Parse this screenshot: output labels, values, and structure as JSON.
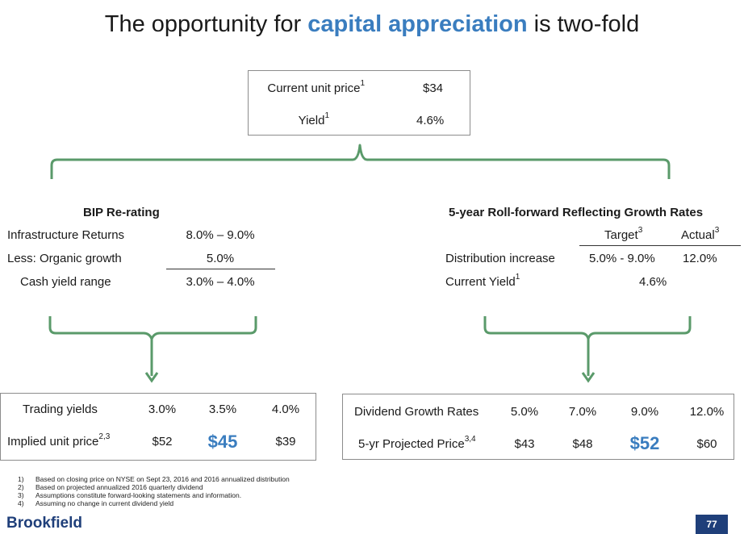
{
  "title": {
    "pre": "The opportunity for ",
    "highlight": "capital appreciation",
    "post": " is two-fold"
  },
  "top_box": {
    "price_label": "Current unit price",
    "price_sup": "1",
    "price_value": "$34",
    "yield_label": "Yield",
    "yield_sup": "1",
    "yield_value": "4.6%"
  },
  "left": {
    "heading": "BIP Re-rating",
    "rows": [
      {
        "label": "Infrastructure Returns",
        "value": "8.0% – 9.0%"
      },
      {
        "label": "Less: Organic growth",
        "value": "5.0%"
      },
      {
        "label": "Cash yield range",
        "value": "3.0% – 4.0%"
      }
    ],
    "box": {
      "row1_label": "Trading yields",
      "row1_values": [
        "3.0%",
        "3.5%",
        "4.0%"
      ],
      "row2_label": "Implied unit price",
      "row2_sup": "2,3",
      "row2_values": [
        "$52",
        "$45",
        "$39"
      ]
    }
  },
  "right": {
    "heading": "5-year Roll-forward Reflecting Growth Rates",
    "col_target": "Target",
    "col_target_sup": "3",
    "col_actual": "Actual",
    "col_actual_sup": "3",
    "dist_label": "Distribution increase",
    "dist_target": "5.0% - 9.0%",
    "dist_actual": "12.0%",
    "yield_label": "Current Yield",
    "yield_sup": "1",
    "yield_value": "4.6%",
    "box": {
      "row1_label": "Dividend Growth Rates",
      "row1_values": [
        "5.0%",
        "7.0%",
        "9.0%",
        "12.0%"
      ],
      "row2_label": "5-yr Projected Price",
      "row2_sup": "3,4",
      "row2_values": [
        "$43",
        "$48",
        "$52",
        "$60"
      ]
    }
  },
  "footnotes": [
    {
      "num": "1)",
      "text": "Based on closing price on NYSE on Sept 23, 2016 and 2016 annualized distribution"
    },
    {
      "num": "2)",
      "text": "Based on projected annualized 2016 quarterly dividend"
    },
    {
      "num": "3)",
      "text": "Assumptions constitute forward-looking statements and information."
    },
    {
      "num": "4)",
      "text": "Assuming no change in current dividend yield"
    }
  ],
  "logo": "Brookfield",
  "page_number": "77",
  "colors": {
    "accent": "#3a7dbf",
    "bracket": "#5a9a6a",
    "navy": "#1f3f7a"
  }
}
